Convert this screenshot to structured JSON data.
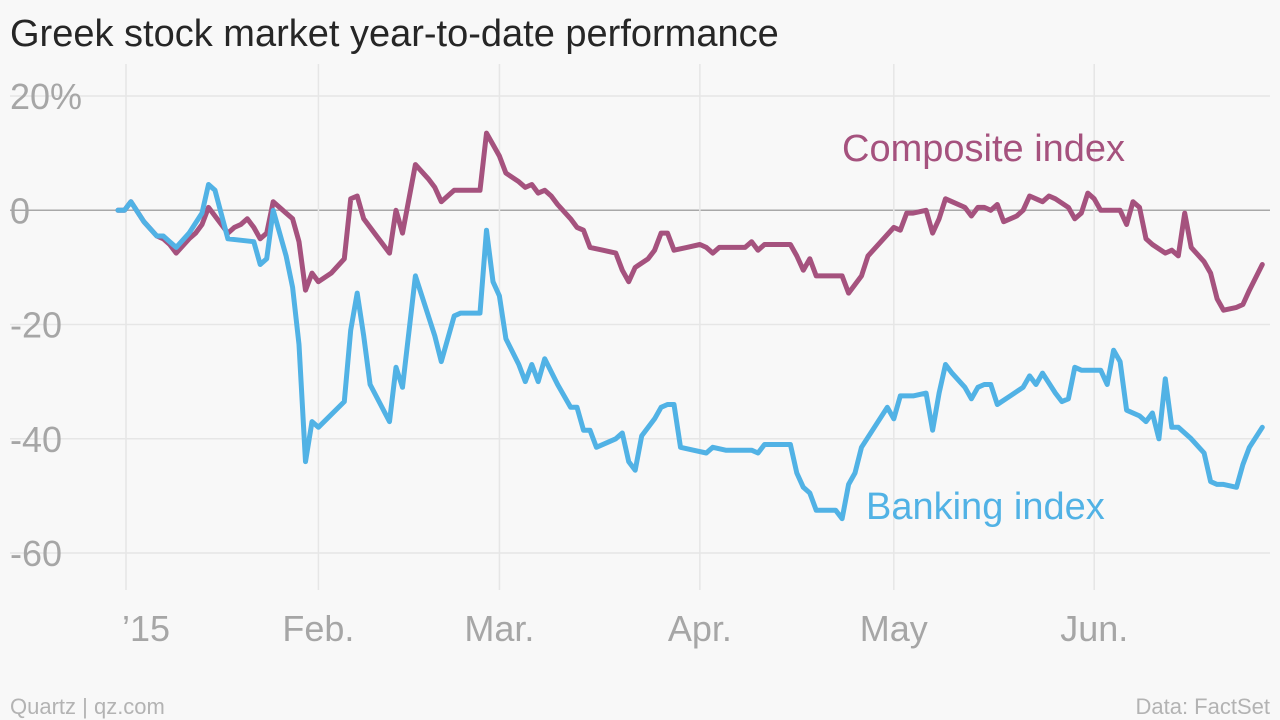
{
  "chart_data": {
    "type": "line",
    "title": "Greek stock market year-to-date performance",
    "source": "Data: FactSet",
    "credit": "Quartz | qz.com",
    "x_domain": [
      "2015-01-01",
      "2015-06-22"
    ],
    "ylim": [
      -67,
      22
    ],
    "y_ticks": [
      {
        "value": 20,
        "label": "20%"
      },
      {
        "value": 0,
        "label": "0"
      },
      {
        "value": -20,
        "label": "-20"
      },
      {
        "value": -40,
        "label": "-40"
      },
      {
        "value": -60,
        "label": "-60"
      }
    ],
    "x_ticks": [
      {
        "date": "2015-01-01",
        "label": "’15"
      },
      {
        "date": "2015-02-01",
        "label": "Feb."
      },
      {
        "date": "2015-03-01",
        "label": "Mar."
      },
      {
        "date": "2015-04-01",
        "label": "Apr."
      },
      {
        "date": "2015-05-01",
        "label": "May"
      },
      {
        "date": "2015-06-01",
        "label": "Jun."
      }
    ],
    "grid": true,
    "series": [
      {
        "name": "Composite index",
        "color": "#a5527e",
        "points": [
          [
            "2015-01-01",
            0
          ],
          [
            "2015-01-02",
            0
          ],
          [
            "2015-01-03",
            1.5
          ],
          [
            "2015-01-05",
            -2
          ],
          [
            "2015-01-07",
            -4.5
          ],
          [
            "2015-01-08",
            -5
          ],
          [
            "2015-01-09",
            -6
          ],
          [
            "2015-01-10",
            -7.5
          ],
          [
            "2015-01-12",
            -5
          ],
          [
            "2015-01-13",
            -4
          ],
          [
            "2015-01-14",
            -2.5
          ],
          [
            "2015-01-15",
            0.5
          ],
          [
            "2015-01-16",
            -1
          ],
          [
            "2015-01-18",
            -4
          ],
          [
            "2015-01-19",
            -3
          ],
          [
            "2015-01-20",
            -2.5
          ],
          [
            "2015-01-21",
            -1.5
          ],
          [
            "2015-01-22",
            -3
          ],
          [
            "2015-01-23",
            -5
          ],
          [
            "2015-01-24",
            -4
          ],
          [
            "2015-01-25",
            1.5
          ],
          [
            "2015-01-27",
            -0.5
          ],
          [
            "2015-01-28",
            -1.5
          ],
          [
            "2015-01-29",
            -5.5
          ],
          [
            "2015-01-30",
            -14
          ],
          [
            "2015-01-31",
            -11
          ],
          [
            "2015-02-01",
            -12.5
          ],
          [
            "2015-02-03",
            -11
          ],
          [
            "2015-02-05",
            -8.5
          ],
          [
            "2015-02-06",
            2
          ],
          [
            "2015-02-07",
            2.5
          ],
          [
            "2015-02-08",
            -1.5
          ],
          [
            "2015-02-10",
            -4.5
          ],
          [
            "2015-02-12",
            -7.5
          ],
          [
            "2015-02-13",
            0
          ],
          [
            "2015-02-14",
            -4
          ],
          [
            "2015-02-16",
            8
          ],
          [
            "2015-02-18",
            5.5
          ],
          [
            "2015-02-19",
            4
          ],
          [
            "2015-02-20",
            1.5
          ],
          [
            "2015-02-21",
            2.5
          ],
          [
            "2015-02-22",
            3.5
          ],
          [
            "2015-02-24",
            3.5
          ],
          [
            "2015-02-26",
            3.5
          ],
          [
            "2015-02-27",
            13.5
          ],
          [
            "2015-02-28",
            11.5
          ],
          [
            "2015-03-01",
            9.5
          ],
          [
            "2015-03-02",
            6.5
          ],
          [
            "2015-03-04",
            5
          ],
          [
            "2015-03-05",
            4
          ],
          [
            "2015-03-06",
            4.5
          ],
          [
            "2015-03-07",
            3
          ],
          [
            "2015-03-08",
            3.5
          ],
          [
            "2015-03-09",
            2.5
          ],
          [
            "2015-03-10",
            1
          ],
          [
            "2015-03-12",
            -1.5
          ],
          [
            "2015-03-13",
            -3
          ],
          [
            "2015-03-14",
            -3.5
          ],
          [
            "2015-03-15",
            -6.5
          ],
          [
            "2015-03-17",
            -7
          ],
          [
            "2015-03-19",
            -7.5
          ],
          [
            "2015-03-20",
            -10.5
          ],
          [
            "2015-03-21",
            -12.5
          ],
          [
            "2015-03-22",
            -10
          ],
          [
            "2015-03-24",
            -8.5
          ],
          [
            "2015-03-25",
            -7
          ],
          [
            "2015-03-26",
            -4
          ],
          [
            "2015-03-27",
            -4
          ],
          [
            "2015-03-28",
            -7
          ],
          [
            "2015-03-30",
            -6.5
          ],
          [
            "2015-04-01",
            -6
          ],
          [
            "2015-04-02",
            -6.5
          ],
          [
            "2015-04-03",
            -7.5
          ],
          [
            "2015-04-04",
            -6.5
          ],
          [
            "2015-04-06",
            -6.5
          ],
          [
            "2015-04-08",
            -6.5
          ],
          [
            "2015-04-09",
            -5.5
          ],
          [
            "2015-04-10",
            -7
          ],
          [
            "2015-04-11",
            -6
          ],
          [
            "2015-04-13",
            -6
          ],
          [
            "2015-04-15",
            -6
          ],
          [
            "2015-04-16",
            -8
          ],
          [
            "2015-04-17",
            -10.5
          ],
          [
            "2015-04-18",
            -8.5
          ],
          [
            "2015-04-19",
            -11.5
          ],
          [
            "2015-04-21",
            -11.5
          ],
          [
            "2015-04-23",
            -11.5
          ],
          [
            "2015-04-24",
            -14.5
          ],
          [
            "2015-04-26",
            -11.5
          ],
          [
            "2015-04-27",
            -8
          ],
          [
            "2015-04-29",
            -5.5
          ],
          [
            "2015-05-01",
            -3
          ],
          [
            "2015-05-02",
            -3.5
          ],
          [
            "2015-05-03",
            -0.5
          ],
          [
            "2015-05-04",
            -0.5
          ],
          [
            "2015-05-06",
            0
          ],
          [
            "2015-05-07",
            -4
          ],
          [
            "2015-05-08",
            -1.5
          ],
          [
            "2015-05-09",
            2
          ],
          [
            "2015-05-10",
            1.5
          ],
          [
            "2015-05-12",
            0.5
          ],
          [
            "2015-05-13",
            -1
          ],
          [
            "2015-05-14",
            0.5
          ],
          [
            "2015-05-15",
            0.5
          ],
          [
            "2015-05-16",
            0
          ],
          [
            "2015-05-17",
            1
          ],
          [
            "2015-05-18",
            -2
          ],
          [
            "2015-05-20",
            -1
          ],
          [
            "2015-05-21",
            0
          ],
          [
            "2015-05-22",
            2.5
          ],
          [
            "2015-05-23",
            2
          ],
          [
            "2015-05-24",
            1.5
          ],
          [
            "2015-05-25",
            2.5
          ],
          [
            "2015-05-26",
            2
          ],
          [
            "2015-05-28",
            0.5
          ],
          [
            "2015-05-29",
            -1.5
          ],
          [
            "2015-05-30",
            -0.5
          ],
          [
            "2015-05-31",
            3
          ],
          [
            "2015-06-01",
            2
          ],
          [
            "2015-06-02",
            0
          ],
          [
            "2015-06-04",
            0
          ],
          [
            "2015-06-05",
            0
          ],
          [
            "2015-06-06",
            -2.5
          ],
          [
            "2015-06-07",
            1.5
          ],
          [
            "2015-06-08",
            0.5
          ],
          [
            "2015-06-09",
            -5
          ],
          [
            "2015-06-10",
            -6
          ],
          [
            "2015-06-12",
            -7.5
          ],
          [
            "2015-06-13",
            -7
          ],
          [
            "2015-06-14",
            -8
          ],
          [
            "2015-06-15",
            -0.5
          ],
          [
            "2015-06-16",
            -6.5
          ],
          [
            "2015-06-18",
            -9
          ],
          [
            "2015-06-19",
            -11
          ],
          [
            "2015-06-20",
            -15.5
          ],
          [
            "2015-06-21",
            -17.5
          ],
          [
            "2015-06-23",
            -17
          ],
          [
            "2015-06-24",
            -16.5
          ],
          [
            "2015-06-25",
            -14
          ],
          [
            "2015-06-27",
            -9.5
          ]
        ]
      },
      {
        "name": "Banking index",
        "color": "#51b2e5",
        "points": [
          [
            "2015-01-01",
            0
          ],
          [
            "2015-01-02",
            0
          ],
          [
            "2015-01-03",
            1.5
          ],
          [
            "2015-01-05",
            -2
          ],
          [
            "2015-01-07",
            -4.5
          ],
          [
            "2015-01-08",
            -4.5
          ],
          [
            "2015-01-09",
            -5.5
          ],
          [
            "2015-01-10",
            -6.5
          ],
          [
            "2015-01-12",
            -4
          ],
          [
            "2015-01-14",
            -0.5
          ],
          [
            "2015-01-15",
            4.5
          ],
          [
            "2015-01-16",
            3.5
          ],
          [
            "2015-01-18",
            -5
          ],
          [
            "2015-01-22",
            -5.5
          ],
          [
            "2015-01-23",
            -9.5
          ],
          [
            "2015-01-24",
            -8.5
          ],
          [
            "2015-01-25",
            0
          ],
          [
            "2015-01-27",
            -8
          ],
          [
            "2015-01-28",
            -13.5
          ],
          [
            "2015-01-29",
            -23.5
          ],
          [
            "2015-01-30",
            -44
          ],
          [
            "2015-01-31",
            -37
          ],
          [
            "2015-02-01",
            -38
          ],
          [
            "2015-02-05",
            -33.5
          ],
          [
            "2015-02-06",
            -21
          ],
          [
            "2015-02-07",
            -14.5
          ],
          [
            "2015-02-08",
            -22
          ],
          [
            "2015-02-09",
            -30.5
          ],
          [
            "2015-02-12",
            -37
          ],
          [
            "2015-02-13",
            -27.5
          ],
          [
            "2015-02-14",
            -31
          ],
          [
            "2015-02-16",
            -11.5
          ],
          [
            "2015-02-19",
            -22
          ],
          [
            "2015-02-20",
            -26.5
          ],
          [
            "2015-02-22",
            -18.5
          ],
          [
            "2015-02-23",
            -18
          ],
          [
            "2015-02-26",
            -18
          ],
          [
            "2015-02-27",
            -3.5
          ],
          [
            "2015-02-28",
            -12.5
          ],
          [
            "2015-03-01",
            -15
          ],
          [
            "2015-03-02",
            -22.5
          ],
          [
            "2015-03-04",
            -27
          ],
          [
            "2015-03-05",
            -30
          ],
          [
            "2015-03-06",
            -27
          ],
          [
            "2015-03-07",
            -30
          ],
          [
            "2015-03-08",
            -26
          ],
          [
            "2015-03-10",
            -30.5
          ],
          [
            "2015-03-12",
            -34.5
          ],
          [
            "2015-03-13",
            -34.5
          ],
          [
            "2015-03-14",
            -38.5
          ],
          [
            "2015-03-15",
            -38.5
          ],
          [
            "2015-03-16",
            -41.5
          ],
          [
            "2015-03-19",
            -40
          ],
          [
            "2015-03-20",
            -39
          ],
          [
            "2015-03-21",
            -44
          ],
          [
            "2015-03-22",
            -45.5
          ],
          [
            "2015-03-23",
            -39.5
          ],
          [
            "2015-03-25",
            -36.5
          ],
          [
            "2015-03-26",
            -34.5
          ],
          [
            "2015-03-27",
            -34
          ],
          [
            "2015-03-28",
            -34
          ],
          [
            "2015-03-29",
            -41.5
          ],
          [
            "2015-03-31",
            -42
          ],
          [
            "2015-04-02",
            -42.5
          ],
          [
            "2015-04-03",
            -41.5
          ],
          [
            "2015-04-05",
            -42
          ],
          [
            "2015-04-07",
            -42
          ],
          [
            "2015-04-09",
            -42
          ],
          [
            "2015-04-10",
            -42.5
          ],
          [
            "2015-04-11",
            -41
          ],
          [
            "2015-04-13",
            -41
          ],
          [
            "2015-04-15",
            -41
          ],
          [
            "2015-04-16",
            -46
          ],
          [
            "2015-04-17",
            -48.5
          ],
          [
            "2015-04-18",
            -49.5
          ],
          [
            "2015-04-19",
            -52.5
          ],
          [
            "2015-04-21",
            -52.5
          ],
          [
            "2015-04-22",
            -52.5
          ],
          [
            "2015-04-23",
            -54
          ],
          [
            "2015-04-24",
            -48
          ],
          [
            "2015-04-25",
            -46
          ],
          [
            "2015-04-26",
            -41.5
          ],
          [
            "2015-04-28",
            -38
          ],
          [
            "2015-04-30",
            -34.5
          ],
          [
            "2015-05-01",
            -36.5
          ],
          [
            "2015-05-02",
            -32.5
          ],
          [
            "2015-05-04",
            -32.5
          ],
          [
            "2015-05-06",
            -32
          ],
          [
            "2015-05-07",
            -38.5
          ],
          [
            "2015-05-08",
            -32
          ],
          [
            "2015-05-09",
            -27
          ],
          [
            "2015-05-10",
            -28.5
          ],
          [
            "2015-05-12",
            -31
          ],
          [
            "2015-05-13",
            -33
          ],
          [
            "2015-05-14",
            -31
          ],
          [
            "2015-05-15",
            -30.5
          ],
          [
            "2015-05-16",
            -30.5
          ],
          [
            "2015-05-17",
            -34
          ],
          [
            "2015-05-19",
            -32.5
          ],
          [
            "2015-05-21",
            -31
          ],
          [
            "2015-05-22",
            -29
          ],
          [
            "2015-05-23",
            -30.5
          ],
          [
            "2015-05-24",
            -28.5
          ],
          [
            "2015-05-26",
            -32
          ],
          [
            "2015-05-27",
            -33.5
          ],
          [
            "2015-05-28",
            -33
          ],
          [
            "2015-05-29",
            -27.5
          ],
          [
            "2015-05-30",
            -28
          ],
          [
            "2015-06-01",
            -28
          ],
          [
            "2015-06-02",
            -28
          ],
          [
            "2015-06-03",
            -30.5
          ],
          [
            "2015-06-04",
            -24.5
          ],
          [
            "2015-06-05",
            -26.5
          ],
          [
            "2015-06-06",
            -35
          ],
          [
            "2015-06-08",
            -36
          ],
          [
            "2015-06-09",
            -37
          ],
          [
            "2015-06-10",
            -35.5
          ],
          [
            "2015-06-11",
            -40
          ],
          [
            "2015-06-12",
            -29.5
          ],
          [
            "2015-06-13",
            -38
          ],
          [
            "2015-06-14",
            -38
          ],
          [
            "2015-06-16",
            -40
          ],
          [
            "2015-06-18",
            -42.5
          ],
          [
            "2015-06-19",
            -47.5
          ],
          [
            "2015-06-20",
            -48
          ],
          [
            "2015-06-21",
            -48
          ],
          [
            "2015-06-23",
            -48.5
          ],
          [
            "2015-06-24",
            -44.5
          ],
          [
            "2015-06-25",
            -41.5
          ],
          [
            "2015-06-27",
            -38
          ]
        ]
      }
    ]
  }
}
